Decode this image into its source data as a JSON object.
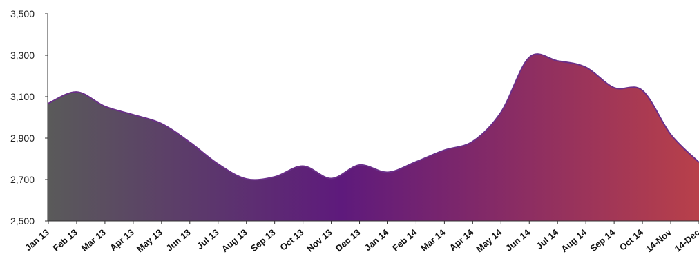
{
  "chart_data": {
    "type": "area",
    "title": "",
    "xlabel": "",
    "ylabel": "",
    "ylim": [
      2500,
      3500
    ],
    "y_ticks": [
      "2,500",
      "2,700",
      "2,900",
      "3,100",
      "3,300",
      "3,500"
    ],
    "y_tick_values": [
      2500,
      2700,
      2900,
      3100,
      3300,
      3500
    ],
    "grid": false,
    "legend": "none",
    "categories": [
      "Jan 13",
      "Feb 13",
      "Mar 13",
      "Apr 13",
      "May 13",
      "Jun 13",
      "Jul 13",
      "Aug 13",
      "Sep 13",
      "Oct 13",
      "Nov 13",
      "Dec 13",
      "Jan 14",
      "Feb 14",
      "Mar 14",
      "Apr 14",
      "May 14",
      "Jun 14",
      "Jul 14",
      "Aug 14",
      "Sep 14",
      "Oct 14",
      "14-Nov",
      "14-Dec"
    ],
    "values": [
      3068,
      3123,
      3053,
      3013,
      2970,
      2880,
      2775,
      2703,
      2713,
      2765,
      2705,
      2770,
      2735,
      2786,
      2842,
      2884,
      3025,
      3290,
      3273,
      3242,
      3143,
      3130,
      2918,
      2783
    ],
    "colors": {
      "gradient": [
        "#5a5a5a",
        "#5e1a7c",
        "#b8404a"
      ],
      "line": "#6a2f8a"
    }
  }
}
